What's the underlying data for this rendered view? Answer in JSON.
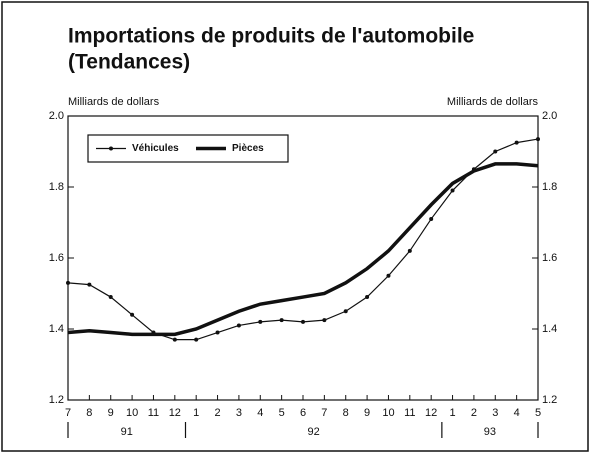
{
  "chart_data": {
    "type": "line",
    "title": "Importations de produits de l'automobile",
    "subtitle": "(Tendances)",
    "y_label_left": "Milliards de dollars",
    "y_label_right": "Milliards de dollars",
    "categories": [
      "7",
      "8",
      "9",
      "10",
      "11",
      "12",
      "1",
      "2",
      "3",
      "4",
      "5",
      "6",
      "7",
      "8",
      "9",
      "10",
      "11",
      "12",
      "1",
      "2",
      "3",
      "4",
      "5"
    ],
    "years": [
      "91",
      "92",
      "93"
    ],
    "series": [
      {
        "name": "Véhicules",
        "color": "#111111",
        "width": 1.2,
        "markers": true,
        "values": [
          1.53,
          1.525,
          1.49,
          1.44,
          1.39,
          1.37,
          1.37,
          1.39,
          1.41,
          1.42,
          1.425,
          1.42,
          1.425,
          1.45,
          1.49,
          1.55,
          1.62,
          1.71,
          1.79,
          1.85,
          1.9,
          1.925,
          1.935
        ]
      },
      {
        "name": "Pièces",
        "color": "#111111",
        "width": 3.5,
        "markers": false,
        "values": [
          1.39,
          1.395,
          1.39,
          1.385,
          1.385,
          1.385,
          1.4,
          1.425,
          1.45,
          1.47,
          1.48,
          1.49,
          1.5,
          1.53,
          1.57,
          1.62,
          1.685,
          1.75,
          1.81,
          1.845,
          1.865,
          1.865,
          1.86
        ]
      }
    ],
    "ylim": [
      1.2,
      2.0
    ],
    "yticks": [
      1.2,
      1.4,
      1.6,
      1.8,
      {
        "value": 2,
        "label": "2.0"
      }
    ],
    "legend": "upper left"
  }
}
